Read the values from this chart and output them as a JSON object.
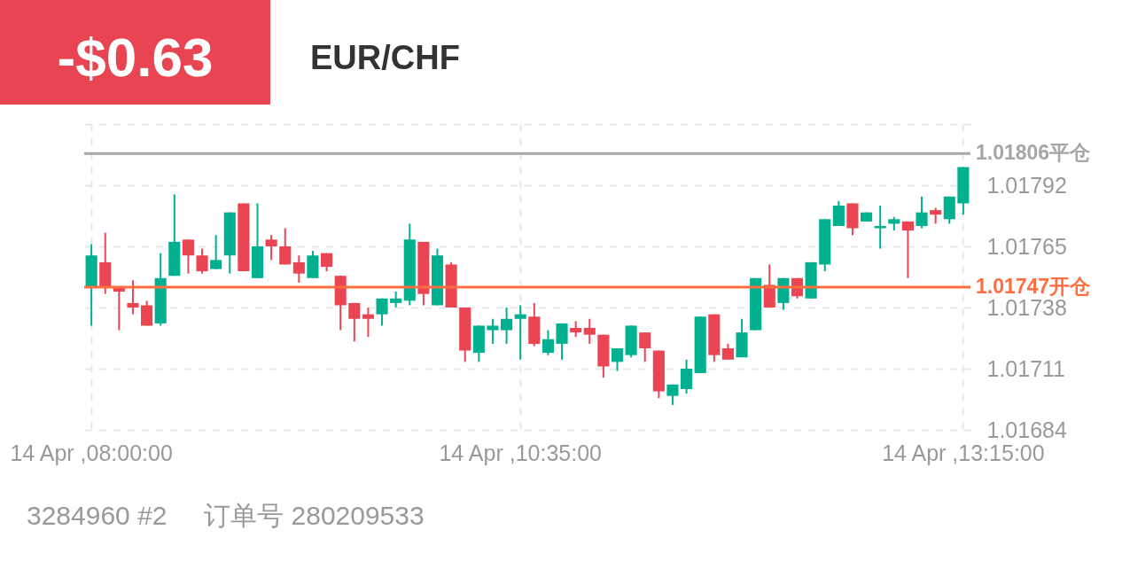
{
  "chart_data": {
    "type": "candlestick",
    "title": "EUR/CHF",
    "annotations": [
      "-$0.63",
      "3284960 #2",
      "订单号 280209533"
    ],
    "categories": [
      "14 Apr ,08:00:00",
      null,
      null,
      null,
      null,
      null,
      null,
      null,
      null,
      null,
      null,
      null,
      null,
      null,
      null,
      null,
      null,
      null,
      null,
      null,
      null,
      null,
      null,
      null,
      null,
      null,
      null,
      null,
      null,
      null,
      null,
      "14 Apr ,10:35:00",
      null,
      null,
      null,
      null,
      null,
      null,
      null,
      null,
      null,
      null,
      null,
      null,
      null,
      null,
      null,
      null,
      null,
      null,
      null,
      null,
      null,
      null,
      null,
      null,
      null,
      null,
      null,
      null,
      null,
      null,
      null,
      "14 Apr ,13:15:00"
    ],
    "ohlc": [
      [
        1.01747,
        1.01766,
        1.0173,
        1.01761
      ],
      [
        1.01758,
        1.01771,
        1.01744,
        1.01747
      ],
      [
        1.01747,
        1.01747,
        1.01728,
        1.01745
      ],
      [
        1.0174,
        1.0175,
        1.01735,
        1.01738
      ],
      [
        1.01739,
        1.01741,
        1.0173,
        1.0173
      ],
      [
        1.01731,
        1.01762,
        1.0173,
        1.01751
      ],
      [
        1.01752,
        1.01788,
        1.01752,
        1.01767
      ],
      [
        1.01768,
        1.01768,
        1.01753,
        1.01761
      ],
      [
        1.01761,
        1.01764,
        1.01753,
        1.01754
      ],
      [
        1.01755,
        1.0177,
        1.01755,
        1.01759
      ],
      [
        1.01761,
        1.0178,
        1.01753,
        1.0178
      ],
      [
        1.01784,
        1.01784,
        1.01754,
        1.01754
      ],
      [
        1.01751,
        1.01784,
        1.01751,
        1.01765
      ],
      [
        1.01768,
        1.0177,
        1.01759,
        1.01765
      ],
      [
        1.01765,
        1.01773,
        1.01757,
        1.01757
      ],
      [
        1.01758,
        1.01761,
        1.01749,
        1.01753
      ],
      [
        1.01751,
        1.01763,
        1.01751,
        1.01761
      ],
      [
        1.01762,
        1.01762,
        1.01754,
        1.01756
      ],
      [
        1.01752,
        1.01752,
        1.01728,
        1.01739
      ],
      [
        1.0174,
        1.0174,
        1.01723,
        1.01733
      ],
      [
        1.01735,
        1.01738,
        1.01725,
        1.01733
      ],
      [
        1.01735,
        1.01742,
        1.0173,
        1.01742
      ],
      [
        1.0174,
        1.01745,
        1.01738,
        1.01742
      ],
      [
        1.01741,
        1.01775,
        1.01739,
        1.01768
      ],
      [
        1.01767,
        1.01767,
        1.01739,
        1.01744
      ],
      [
        1.01739,
        1.01764,
        1.01739,
        1.01761
      ],
      [
        1.01757,
        1.01758,
        1.01738,
        1.01738
      ],
      [
        1.01738,
        1.01738,
        1.01714,
        1.01719
      ],
      [
        1.01718,
        1.0173,
        1.01714,
        1.0173
      ],
      [
        1.01728,
        1.01733,
        1.01722,
        1.0173
      ],
      [
        1.01728,
        1.01738,
        1.01722,
        1.01733
      ],
      [
        1.01733,
        1.01739,
        1.01715,
        1.01735
      ],
      [
        1.01734,
        1.0174,
        1.01721,
        1.01722
      ],
      [
        1.01718,
        1.01728,
        1.01717,
        1.01724
      ],
      [
        1.01722,
        1.01731,
        1.01715,
        1.01731
      ],
      [
        1.01729,
        1.01732,
        1.01725,
        1.01727
      ],
      [
        1.01729,
        1.01733,
        1.01722,
        1.01726
      ],
      [
        1.01726,
        1.01726,
        1.01707,
        1.01712
      ],
      [
        1.01714,
        1.0172,
        1.0171,
        1.0172
      ],
      [
        1.01717,
        1.0173,
        1.01716,
        1.0173
      ],
      [
        1.01727,
        1.01727,
        1.01714,
        1.0172
      ],
      [
        1.01719,
        1.01719,
        1.01698,
        1.01701
      ],
      [
        1.01699,
        1.01704,
        1.01695,
        1.01704
      ],
      [
        1.01702,
        1.01715,
        1.017,
        1.01711
      ],
      [
        1.01709,
        1.01734,
        1.01709,
        1.01734
      ],
      [
        1.01735,
        1.01735,
        1.01714,
        1.01717
      ],
      [
        1.0172,
        1.01722,
        1.01715,
        1.01715
      ],
      [
        1.01716,
        1.01733,
        1.01716,
        1.01727
      ],
      [
        1.01728,
        1.01751,
        1.01728,
        1.01751
      ],
      [
        1.01748,
        1.01757,
        1.01738,
        1.01738
      ],
      [
        1.0174,
        1.01751,
        1.01737,
        1.01751
      ],
      [
        1.01751,
        1.01751,
        1.01742,
        1.01743
      ],
      [
        1.01742,
        1.01758,
        1.01742,
        1.01758
      ],
      [
        1.01757,
        1.01777,
        1.01754,
        1.01777
      ],
      [
        1.01774,
        1.01785,
        1.01774,
        1.01783
      ],
      [
        1.01784,
        1.01784,
        1.0177,
        1.01773
      ],
      [
        1.01776,
        1.0178,
        1.01776,
        1.0178
      ],
      [
        1.01773,
        1.01783,
        1.01764,
        1.01774
      ],
      [
        1.01775,
        1.01778,
        1.01772,
        1.01777
      ],
      [
        1.01776,
        1.01776,
        1.01751,
        1.01772
      ],
      [
        1.01774,
        1.01787,
        1.01773,
        1.0178
      ],
      [
        1.01781,
        1.01782,
        1.01775,
        1.01779
      ],
      [
        1.01777,
        1.01787,
        1.01775,
        1.01787
      ],
      [
        1.01784,
        1.018,
        1.01779,
        1.018
      ]
    ],
    "colors": [
      "#00b08f",
      "#eb4553",
      "#eb4553",
      "#eb4553",
      "#eb4553",
      "#00b08f",
      "#00b08f",
      "#eb4553",
      "#eb4553",
      "#00b08f",
      "#00b08f",
      "#eb4553",
      "#00b08f",
      "#eb4553",
      "#eb4553",
      "#eb4553",
      "#00b08f",
      "#eb4553",
      "#eb4553",
      "#eb4553",
      "#eb4553",
      "#00b08f",
      "#00b08f",
      "#00b08f",
      "#eb4553",
      "#00b08f",
      "#eb4553",
      "#eb4553",
      "#00b08f",
      "#00b08f",
      "#00b08f",
      "#00b08f",
      "#eb4553",
      "#00b08f",
      "#00b08f",
      "#eb4553",
      "#eb4553",
      "#eb4553",
      "#00b08f",
      "#00b08f",
      "#eb4553",
      "#eb4553",
      "#00b08f",
      "#00b08f",
      "#00b08f",
      "#eb4553",
      "#eb4553",
      "#00b08f",
      "#00b08f",
      "#eb4553",
      "#00b08f",
      "#eb4553",
      "#00b08f",
      "#00b08f",
      "#00b08f",
      "#eb4553",
      "#00b08f",
      "#00b08f",
      "#00b08f",
      "#eb4553",
      "#00b08f",
      "#eb4553",
      "#00b08f",
      "#00b08f"
    ],
    "ylim": [
      1.01684,
      1.01819
    ],
    "yticks": [
      1.01684,
      1.01711,
      1.01738,
      1.01765,
      1.01792,
      {
        "value": 1.01819,
        "label": null
      }
    ],
    "ref_lines": [
      {
        "axis": "y",
        "value": 1.01806,
        "label": "1.01806平仓",
        "color": "#a6a6a6"
      },
      {
        "axis": "y",
        "value": 1.01747,
        "label": "1.01747开仓",
        "color": "#ff6e40"
      }
    ],
    "grid": true
  }
}
